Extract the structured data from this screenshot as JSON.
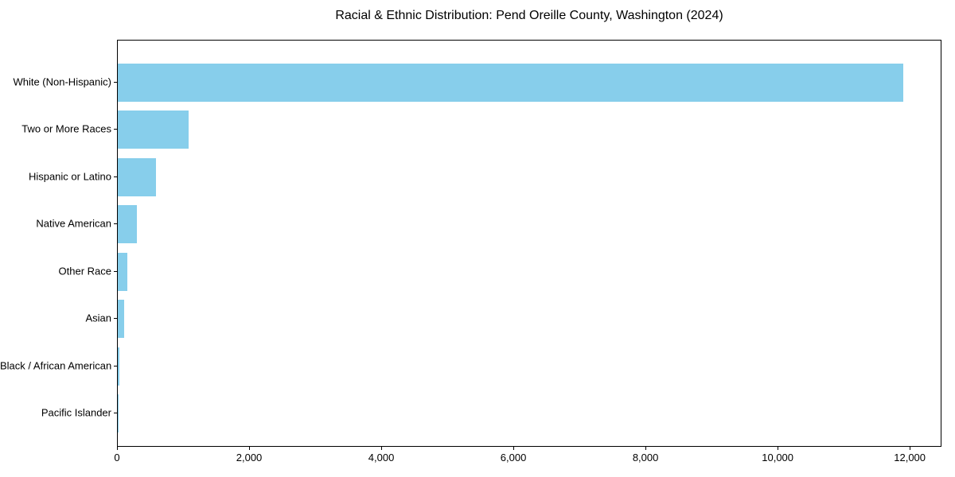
{
  "title": "Racial & Ethnic Distribution: Pend Oreille County, Washington (2024)",
  "chart_data": {
    "type": "bar",
    "orientation": "horizontal",
    "title": "Racial & Ethnic Distribution: Pend Oreille County, Washington (2024)",
    "categories": [
      "White (Non-Hispanic)",
      "Two or More Races",
      "Hispanic or Latino",
      "Native American",
      "Other Race",
      "Asian",
      "Black / African American",
      "Pacific Islander"
    ],
    "values": [
      11916,
      1072,
      578,
      289,
      148,
      95,
      20,
      5
    ],
    "xlabel": "",
    "ylabel": "",
    "xlim": [
      0,
      12480
    ],
    "x_ticks": [
      0,
      2000,
      4000,
      6000,
      8000,
      10000,
      12000
    ],
    "x_tick_labels": [
      "0",
      "2,000",
      "4,000",
      "6,000",
      "8,000",
      "10,000",
      "12,000"
    ],
    "bar_color": "#87CEEB",
    "background_color": "#FFFFFF",
    "spine_color": "#000000",
    "grid": false,
    "legend": null
  }
}
